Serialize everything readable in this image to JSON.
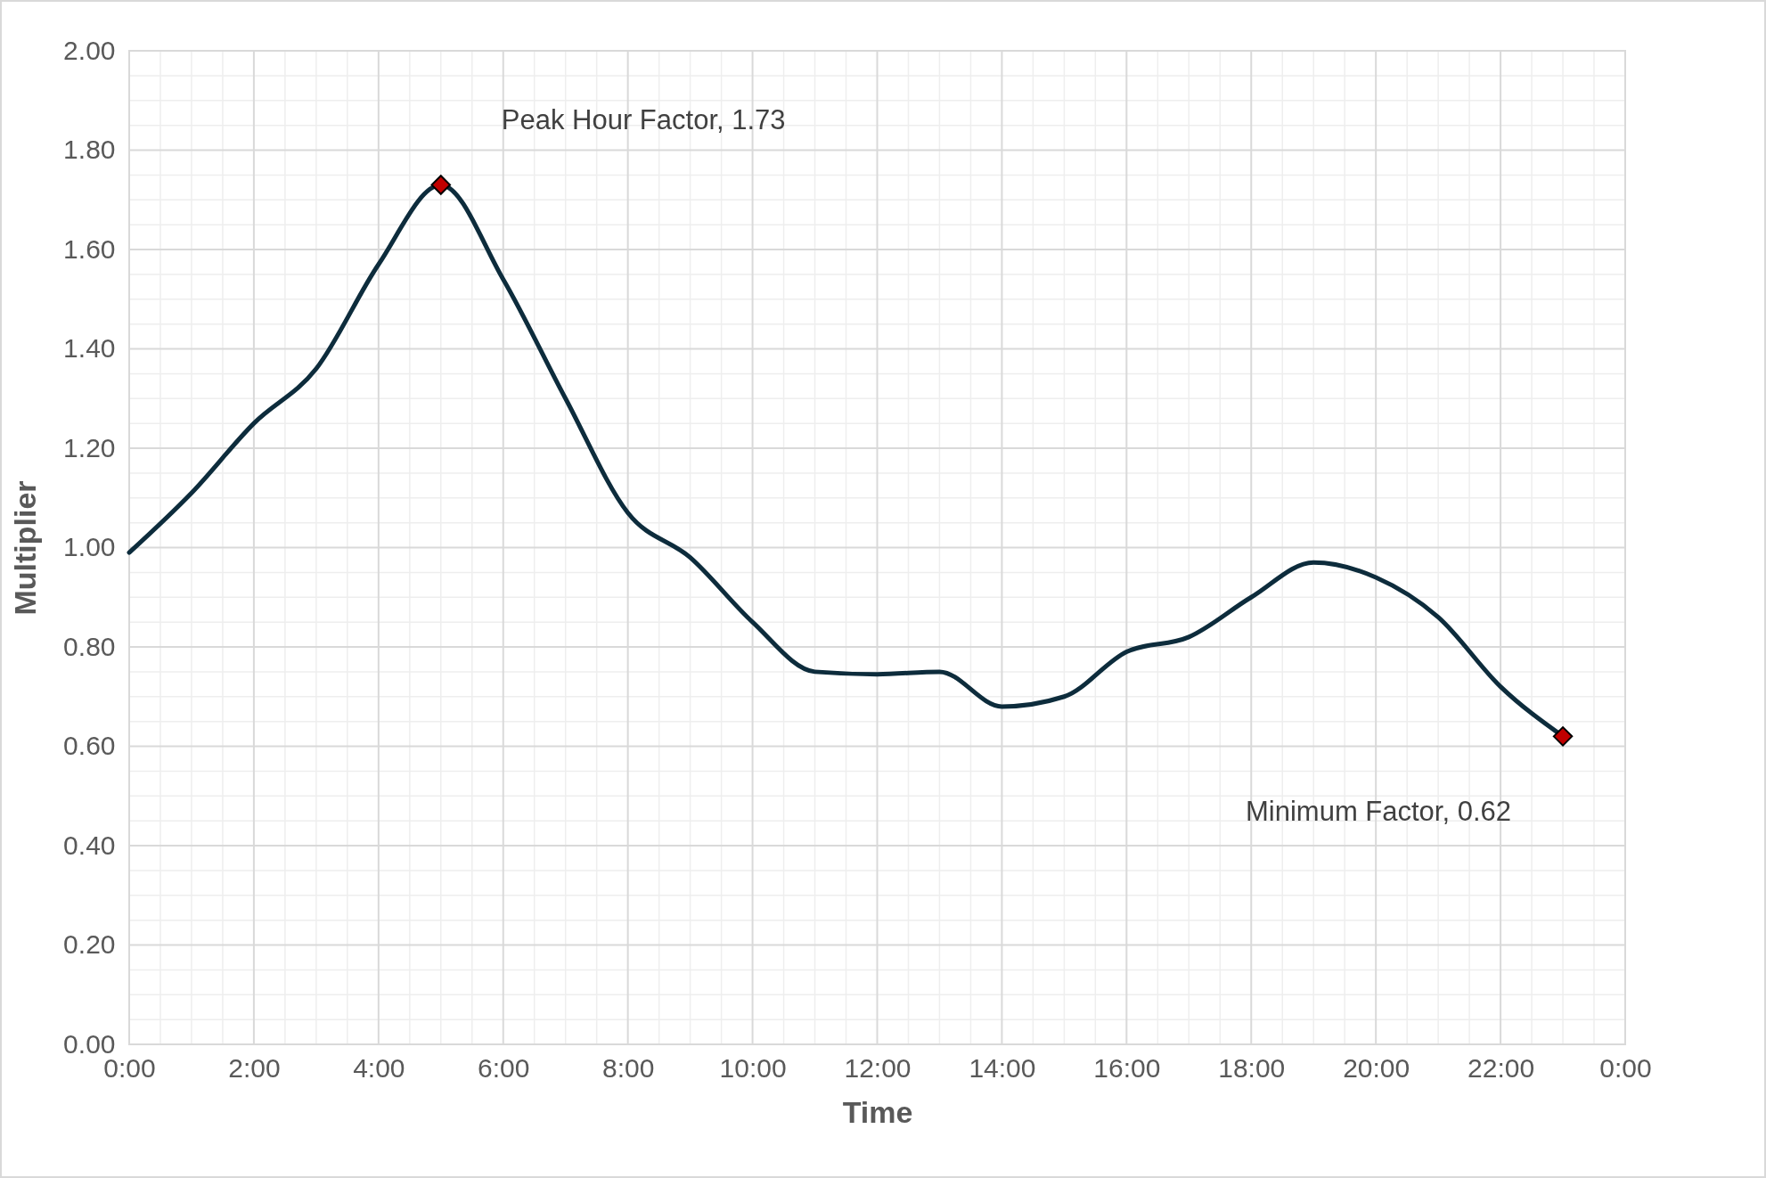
{
  "chart_data": {
    "type": "line",
    "xlabel": "Time",
    "ylabel": "Multiplier",
    "x": [
      0,
      1,
      2,
      3,
      4,
      5,
      6,
      7,
      8,
      9,
      10,
      11,
      12,
      13,
      14,
      15,
      16,
      17,
      18,
      19,
      20,
      21,
      22,
      23
    ],
    "series": [
      {
        "type": "line",
        "color": "#0d2c3c",
        "marker": "none",
        "line_style": "solid",
        "values": [
          0.99,
          1.11,
          1.25,
          1.36,
          1.57,
          1.73,
          1.54,
          1.3,
          1.07,
          0.98,
          0.85,
          0.75,
          0.745,
          0.75,
          0.68,
          0.7,
          0.79,
          0.82,
          0.9,
          0.97,
          0.94,
          0.86,
          0.72,
          0.62
        ]
      },
      {
        "type": "scatter",
        "color": "#c00000",
        "marker": "diamond",
        "x": [
          5,
          23
        ],
        "values": [
          1.73,
          0.62
        ]
      }
    ],
    "xlim": [
      0,
      24
    ],
    "xticks": [
      {
        "value": 0,
        "label": "0:00"
      },
      {
        "value": 2,
        "label": "2:00"
      },
      {
        "value": 4,
        "label": "4:00"
      },
      {
        "value": 6,
        "label": "6:00"
      },
      {
        "value": 8,
        "label": "8:00"
      },
      {
        "value": 10,
        "label": "10:00"
      },
      {
        "value": 12,
        "label": "12:00"
      },
      {
        "value": 14,
        "label": "14:00"
      },
      {
        "value": 16,
        "label": "16:00"
      },
      {
        "value": 18,
        "label": "18:00"
      },
      {
        "value": 20,
        "label": "20:00"
      },
      {
        "value": 22,
        "label": "22:00"
      },
      {
        "value": 24,
        "label": "0:00"
      }
    ],
    "ylim": [
      0,
      2
    ],
    "yticks": [
      {
        "value": 0,
        "label": "0.00"
      },
      {
        "value": 0.2,
        "label": "0.20"
      },
      {
        "value": 0.4,
        "label": "0.40"
      },
      {
        "value": 0.6,
        "label": "0.60"
      },
      {
        "value": 0.8,
        "label": "0.80"
      },
      {
        "value": 1,
        "label": "1.00"
      },
      {
        "value": 1.2,
        "label": "1.20"
      },
      {
        "value": 1.4,
        "label": "1.40"
      },
      {
        "value": 1.6,
        "label": "1.60"
      },
      {
        "value": 1.8,
        "label": "1.80"
      },
      {
        "value": 2,
        "label": "2.00"
      }
    ],
    "grid": true,
    "annotations": [
      {
        "text": "Peak Hour Factor, 1.73",
        "x": 5,
        "y": 1.73
      },
      {
        "text": "Minimum Factor, 0.62",
        "x": 23,
        "y": 0.62
      }
    ]
  }
}
